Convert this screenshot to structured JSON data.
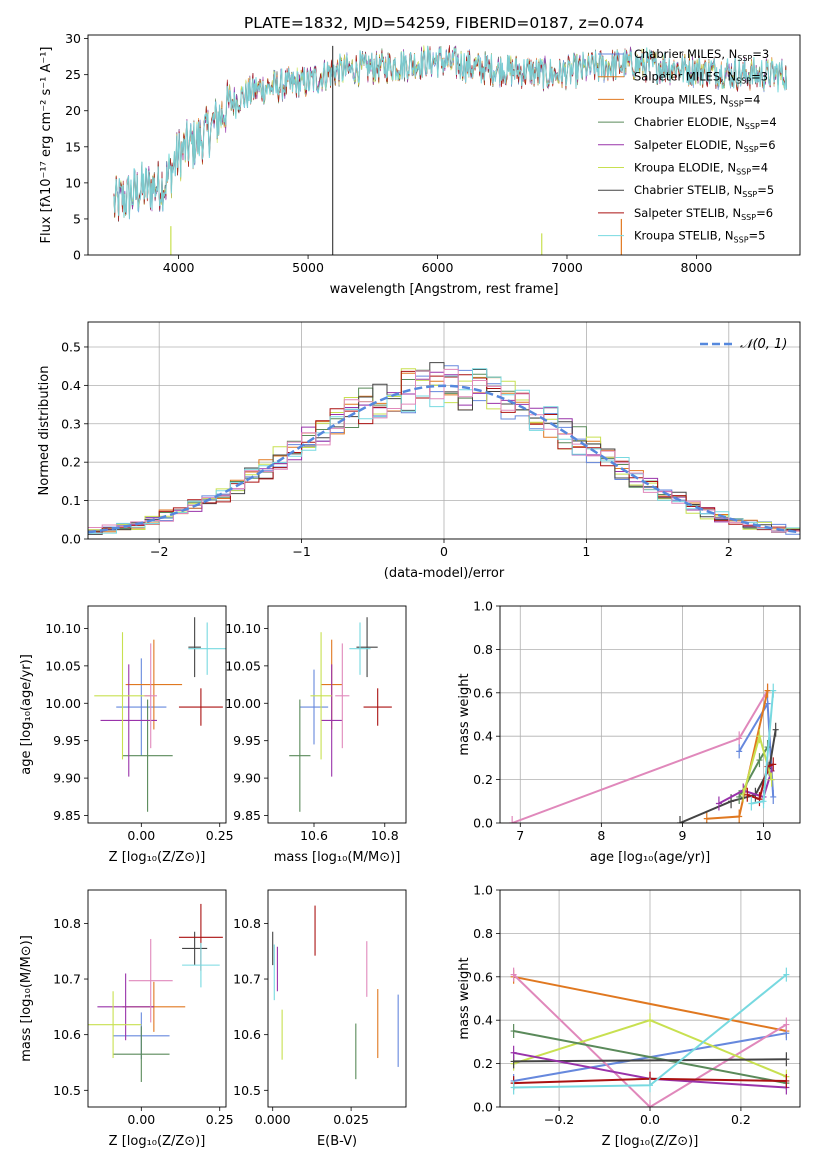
{
  "colors": {
    "blue": "#6688dd",
    "orange": "#e07820",
    "green": "#5a8a5a",
    "purple": "#9933aa",
    "yellow": "#c8e050",
    "dark": "#444444",
    "red": "#aa1111",
    "cyan": "#77d9e0",
    "pink": "#e088bb",
    "gauss": "#5588dd"
  },
  "chart_data": [
    {
      "id": "spectrum",
      "type": "line",
      "title": "PLATE=1832, MJD=54259, FIBERID=0187, z=0.074",
      "xlabel": "wavelength [Angstrom, rest frame]",
      "ylabel": "Flux [fλ10⁻¹⁷ erg cm⁻² s⁻¹ A⁻¹]",
      "xlim": [
        3300,
        8800
      ],
      "ylim": [
        0,
        30.5
      ],
      "xticks": [
        4000,
        5000,
        6000,
        7000,
        8000
      ],
      "yticks": [
        0,
        5,
        10,
        15,
        20,
        25,
        30
      ],
      "legend_position": "right",
      "continuum": {
        "x": [
          3500,
          3700,
          3900,
          4000,
          4200,
          4400,
          4600,
          4800,
          5000,
          5200,
          5500,
          5800,
          6000,
          6300,
          6600,
          6900,
          7200,
          7500,
          7800,
          8100,
          8400,
          8700
        ],
        "y": [
          7,
          9,
          10,
          14,
          16.5,
          21,
          23,
          23.5,
          24,
          25.5,
          26,
          26.5,
          27,
          26,
          25.5,
          25,
          26,
          26.5,
          26,
          25.5,
          25,
          25
        ]
      },
      "series": [
        {
          "name": "Chabrier MILES, N",
          "sub": "SSP",
          "suffix": "=3",
          "color": "blue"
        },
        {
          "name": "Salpeter MILES, N",
          "sub": "SSP",
          "suffix": "=3",
          "color": "orange"
        },
        {
          "name": "Kroupa MILES, N",
          "sub": "SSP",
          "suffix": "=4",
          "color": "orange"
        },
        {
          "name": "Chabrier ELODIE, N",
          "sub": "SSP",
          "suffix": "=4",
          "color": "green"
        },
        {
          "name": "Salpeter ELODIE, N",
          "sub": "SSP",
          "suffix": "=6",
          "color": "purple"
        },
        {
          "name": "Kroupa ELODIE, N",
          "sub": "SSP",
          "suffix": "=4",
          "color": "yellow"
        },
        {
          "name": "Chabrier STELIB, N",
          "sub": "SSP",
          "suffix": "=5",
          "color": "dark"
        },
        {
          "name": "Salpeter STELIB, N",
          "sub": "SSP",
          "suffix": "=6",
          "color": "red"
        },
        {
          "name": "Kroupa STELIB, N",
          "sub": "SSP",
          "suffix": "=5",
          "color": "cyan"
        }
      ]
    },
    {
      "id": "residuals",
      "type": "line",
      "xlabel": "(data-model)/error",
      "ylabel": "Normed distribution",
      "xlim": [
        -2.5,
        2.5
      ],
      "ylim": [
        0,
        0.565
      ],
      "xticks": [
        -2,
        -1,
        0,
        1,
        2
      ],
      "yticks": [
        0.0,
        0.1,
        0.2,
        0.3,
        0.4,
        0.5
      ],
      "grid": true,
      "legend": "𝒩(0, 1)",
      "legend_position": "top-right",
      "histogram": {
        "bin_width": 0.1,
        "range": [
          -2.5,
          2.5
        ]
      }
    },
    {
      "id": "age-vs-Z",
      "type": "scatter",
      "xlabel": "Z [log₁₀(Z/Z⊙)]",
      "ylabel": "age  [log₁₀(age/yr)]",
      "xlim": [
        -0.17,
        0.27
      ],
      "ylim": [
        9.84,
        10.13
      ],
      "xticks": [
        0.0,
        0.25
      ],
      "xticklabels": [
        "0.00",
        "0.25"
      ],
      "yticks": [
        9.85,
        9.9,
        9.95,
        10.0,
        10.05,
        10.1
      ],
      "yticklabels": [
        "9.85",
        "9.90",
        "9.95",
        "10.00",
        "10.05",
        "10.10"
      ],
      "points": [
        {
          "x": 0.0,
          "y": 9.995,
          "xerr": 0.08,
          "yerr": 0.065,
          "color": "blue"
        },
        {
          "x": 0.04,
          "y": 10.025,
          "xerr": 0.09,
          "yerr": 0.06,
          "color": "orange"
        },
        {
          "x": 0.02,
          "y": 9.93,
          "xerr": 0.08,
          "yerr": 0.075,
          "color": "green"
        },
        {
          "x": -0.04,
          "y": 9.977,
          "xerr": 0.09,
          "yerr": 0.075,
          "color": "purple"
        },
        {
          "x": -0.06,
          "y": 10.01,
          "xerr": 0.09,
          "yerr": 0.085,
          "color": "yellow"
        },
        {
          "x": 0.17,
          "y": 10.075,
          "xerr": 0.02,
          "yerr": 0.04,
          "color": "dark"
        },
        {
          "x": 0.19,
          "y": 9.995,
          "xerr": 0.07,
          "yerr": 0.025,
          "color": "red"
        },
        {
          "x": 0.21,
          "y": 10.073,
          "xerr": 0.06,
          "yerr": 0.035,
          "color": "cyan"
        },
        {
          "x": 0.03,
          "y": 10.01,
          "xerr": 0.02,
          "yerr": 0.07,
          "color": "pink"
        }
      ]
    },
    {
      "id": "age-vs-mass",
      "type": "scatter",
      "xlabel": "mass [log₁₀(M/M⊙)]",
      "ylabel": "",
      "xlim": [
        10.47,
        10.86
      ],
      "ylim": [
        9.84,
        10.13
      ],
      "xticks": [
        10.6,
        10.8
      ],
      "xticklabels": [
        "10.6",
        "10.8"
      ],
      "yticks": [
        9.85,
        9.9,
        9.95,
        10.0,
        10.05,
        10.1
      ],
      "yticklabels": [
        "9.85",
        "9.90",
        "9.95",
        "10.00",
        "10.05",
        "10.10"
      ],
      "points": [
        {
          "x": 10.6,
          "y": 9.995,
          "xerr": 0.04,
          "yerr": 0.05,
          "color": "blue"
        },
        {
          "x": 10.65,
          "y": 10.025,
          "xerr": 0.03,
          "yerr": 0.06,
          "color": "orange"
        },
        {
          "x": 10.56,
          "y": 9.93,
          "xerr": 0.03,
          "yerr": 0.075,
          "color": "green"
        },
        {
          "x": 10.65,
          "y": 9.977,
          "xerr": 0.03,
          "yerr": 0.075,
          "color": "purple"
        },
        {
          "x": 10.62,
          "y": 10.01,
          "xerr": 0.03,
          "yerr": 0.085,
          "color": "yellow"
        },
        {
          "x": 10.75,
          "y": 10.075,
          "xerr": 0.03,
          "yerr": 0.04,
          "color": "dark"
        },
        {
          "x": 10.78,
          "y": 9.995,
          "xerr": 0.04,
          "yerr": 0.025,
          "color": "red"
        },
        {
          "x": 10.73,
          "y": 10.073,
          "xerr": 0.03,
          "yerr": 0.035,
          "color": "cyan"
        },
        {
          "x": 10.68,
          "y": 10.01,
          "xerr": 0.02,
          "yerr": 0.07,
          "color": "pink"
        }
      ]
    },
    {
      "id": "weight-vs-age",
      "type": "line",
      "xlabel": "age  [log₁₀(age/yr)]",
      "ylabel": "mass weight",
      "xlim": [
        6.75,
        10.45
      ],
      "ylim": [
        0,
        1.0
      ],
      "xticks": [
        7,
        8,
        9,
        10
      ],
      "yticks": [
        0.0,
        0.2,
        0.4,
        0.6,
        0.8,
        1.0
      ],
      "yticklabels": [
        "0.0",
        "0.2",
        "0.4",
        "0.6",
        "0.8",
        "1.0"
      ],
      "grid": true,
      "series": [
        {
          "color": "pink",
          "x": [
            6.9,
            9.7,
            10.05
          ],
          "y": [
            0.0,
            0.39,
            0.61
          ]
        },
        {
          "color": "blue",
          "x": [
            9.7,
            10.05,
            10.12
          ],
          "y": [
            0.33,
            0.55,
            0.12
          ]
        },
        {
          "color": "orange",
          "x": [
            9.3,
            9.7,
            10.05
          ],
          "y": [
            0.02,
            0.03,
            0.61
          ]
        },
        {
          "color": "dark",
          "x": [
            8.97,
            9.6,
            9.9,
            10.07,
            10.15
          ],
          "y": [
            0.0,
            0.1,
            0.13,
            0.25,
            0.43
          ]
        },
        {
          "color": "green",
          "x": [
            9.7,
            9.95,
            10.05
          ],
          "y": [
            0.12,
            0.29,
            0.35
          ]
        },
        {
          "color": "purple",
          "x": [
            9.45,
            9.75,
            10.0,
            10.1
          ],
          "y": [
            0.09,
            0.15,
            0.12,
            0.24
          ]
        },
        {
          "color": "yellow",
          "x": [
            9.75,
            9.95,
            10.1
          ],
          "y": [
            0.13,
            0.4,
            0.2
          ]
        },
        {
          "color": "red",
          "x": [
            9.8,
            9.95,
            10.05,
            10.12
          ],
          "y": [
            0.13,
            0.11,
            0.26,
            0.27
          ]
        },
        {
          "color": "cyan",
          "x": [
            9.85,
            10.0,
            10.12
          ],
          "y": [
            0.09,
            0.1,
            0.61
          ]
        }
      ]
    },
    {
      "id": "mass-vs-Z",
      "type": "scatter",
      "xlabel": "Z [log₁₀(Z/Z⊙)]",
      "ylabel": "mass [log₁₀(M/M⊙)]",
      "xlim": [
        -0.17,
        0.27
      ],
      "ylim": [
        10.47,
        10.86
      ],
      "xticks": [
        0.0,
        0.25
      ],
      "xticklabels": [
        "0.00",
        "0.25"
      ],
      "yticks": [
        10.5,
        10.6,
        10.7,
        10.8
      ],
      "yticklabels": [
        "10.5",
        "10.6",
        "10.7",
        "10.8"
      ],
      "points": [
        {
          "x": 0.0,
          "y": 10.598,
          "xerr": 0.09,
          "yerr": 0.042,
          "color": "blue"
        },
        {
          "x": 0.04,
          "y": 10.65,
          "xerr": 0.1,
          "yerr": 0.045,
          "color": "orange"
        },
        {
          "x": 0.0,
          "y": 10.565,
          "xerr": 0.09,
          "yerr": 0.05,
          "color": "green"
        },
        {
          "x": -0.05,
          "y": 10.65,
          "xerr": 0.09,
          "yerr": 0.06,
          "color": "purple"
        },
        {
          "x": -0.09,
          "y": 10.618,
          "xerr": 0.09,
          "yerr": 0.06,
          "color": "yellow"
        },
        {
          "x": 0.17,
          "y": 10.755,
          "xerr": 0.04,
          "yerr": 0.03,
          "color": "dark"
        },
        {
          "x": 0.19,
          "y": 10.775,
          "xerr": 0.07,
          "yerr": 0.06,
          "color": "red"
        },
        {
          "x": 0.19,
          "y": 10.725,
          "xerr": 0.06,
          "yerr": 0.04,
          "color": "cyan"
        },
        {
          "x": 0.03,
          "y": 10.697,
          "xerr": 0.07,
          "yerr": 0.075,
          "color": "pink"
        }
      ]
    },
    {
      "id": "mass-vs-EBV",
      "type": "scatter",
      "xlabel": "E(B-V)",
      "ylabel": "",
      "xlim": [
        -0.0015,
        0.0425
      ],
      "ylim": [
        10.47,
        10.86
      ],
      "xticks": [
        0.0,
        0.025
      ],
      "xticklabels": [
        "0.000",
        "0.025"
      ],
      "yticks": [
        10.5,
        10.6,
        10.7,
        10.8
      ],
      "yticklabels": [
        "10.5",
        "10.6",
        "10.7",
        "10.8"
      ],
      "points": [
        {
          "x": 0.04,
          "y": 10.607,
          "yerr": 0.065,
          "color": "blue"
        },
        {
          "x": 0.0335,
          "y": 10.62,
          "yerr": 0.062,
          "color": "orange"
        },
        {
          "x": 0.0265,
          "y": 10.57,
          "yerr": 0.05,
          "color": "green"
        },
        {
          "x": 0.0015,
          "y": 10.718,
          "yerr": 0.04,
          "color": "purple"
        },
        {
          "x": 0.003,
          "y": 10.6,
          "yerr": 0.045,
          "color": "yellow"
        },
        {
          "x": 0.0,
          "y": 10.755,
          "yerr": 0.03,
          "color": "dark"
        },
        {
          "x": 0.0135,
          "y": 10.787,
          "yerr": 0.045,
          "color": "red"
        },
        {
          "x": 0.0005,
          "y": 10.712,
          "yerr": 0.05,
          "color": "cyan"
        },
        {
          "x": 0.03,
          "y": 10.718,
          "yerr": 0.05,
          "color": "pink"
        }
      ]
    },
    {
      "id": "weight-vs-Z",
      "type": "line",
      "xlabel": "Z [log₁₀(Z/Z⊙)]",
      "ylabel": "mass weight",
      "xlim": [
        -0.33,
        0.33
      ],
      "ylim": [
        0,
        1.0
      ],
      "xticks": [
        -0.2,
        0.0,
        0.2
      ],
      "xticklabels": [
        "−0.2",
        "0.0",
        "0.2"
      ],
      "yticks": [
        0.0,
        0.2,
        0.4,
        0.6,
        0.8,
        1.0
      ],
      "yticklabels": [
        "0.0",
        "0.2",
        "0.4",
        "0.6",
        "0.8",
        "1.0"
      ],
      "grid": true,
      "series": [
        {
          "color": "orange",
          "x": [
            -0.3,
            0.3
          ],
          "y": [
            0.6,
            0.35
          ]
        },
        {
          "color": "blue",
          "x": [
            -0.3,
            0.3
          ],
          "y": [
            0.12,
            0.34
          ]
        },
        {
          "color": "pink",
          "x": [
            -0.3,
            0.0,
            0.3
          ],
          "y": [
            0.61,
            0.0,
            0.38
          ]
        },
        {
          "color": "yellow",
          "x": [
            -0.3,
            0.0,
            0.3
          ],
          "y": [
            0.2,
            0.4,
            0.14
          ]
        },
        {
          "color": "green",
          "x": [
            -0.3,
            0.3
          ],
          "y": [
            0.35,
            0.11
          ]
        },
        {
          "color": "dark",
          "x": [
            -0.3,
            0.3
          ],
          "y": [
            0.21,
            0.22
          ]
        },
        {
          "color": "purple",
          "x": [
            -0.3,
            0.0,
            0.3
          ],
          "y": [
            0.25,
            0.13,
            0.09
          ]
        },
        {
          "color": "red",
          "x": [
            -0.3,
            0.0,
            0.3
          ],
          "y": [
            0.11,
            0.13,
            0.12
          ]
        },
        {
          "color": "cyan",
          "x": [
            -0.3,
            0.0,
            0.3
          ],
          "y": [
            0.09,
            0.1,
            0.61
          ]
        }
      ]
    }
  ]
}
